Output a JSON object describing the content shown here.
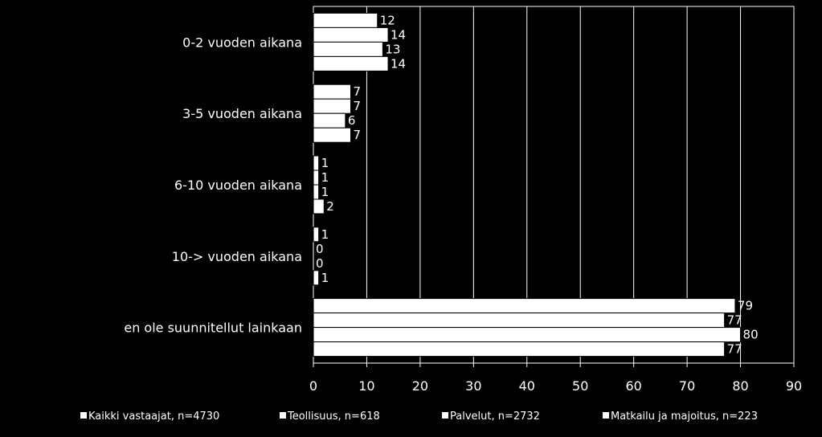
{
  "chart_data": {
    "type": "bar",
    "orientation": "horizontal",
    "categories": [
      "0-2 vuoden aikana",
      "3-5 vuoden aikana",
      "6-10 vuoden aikana",
      "10-> vuoden aikana",
      "en ole suunnitellut lainkaan"
    ],
    "series": [
      {
        "name": "Kaikki vastaajat, n=4730",
        "values": [
          12,
          7,
          1,
          1,
          79
        ]
      },
      {
        "name": "Teollisuus, n=618",
        "values": [
          14,
          7,
          1,
          0,
          77
        ]
      },
      {
        "name": "Palvelut, n=2732",
        "values": [
          13,
          6,
          1,
          0,
          80
        ]
      },
      {
        "name": "Matkailu ja majoitus, n=223",
        "values": [
          14,
          7,
          2,
          1,
          77
        ]
      }
    ],
    "xlim": [
      0,
      90
    ],
    "x_ticks": [
      0,
      10,
      20,
      30,
      40,
      50,
      60,
      70,
      80,
      90
    ],
    "grid": true,
    "legend_position": "bottom",
    "colors": {
      "background": "#000000",
      "bar_fill": "#ffffff",
      "bar_stroke": "#000000",
      "grid": "#ffffff",
      "text": "#ffffff"
    }
  }
}
